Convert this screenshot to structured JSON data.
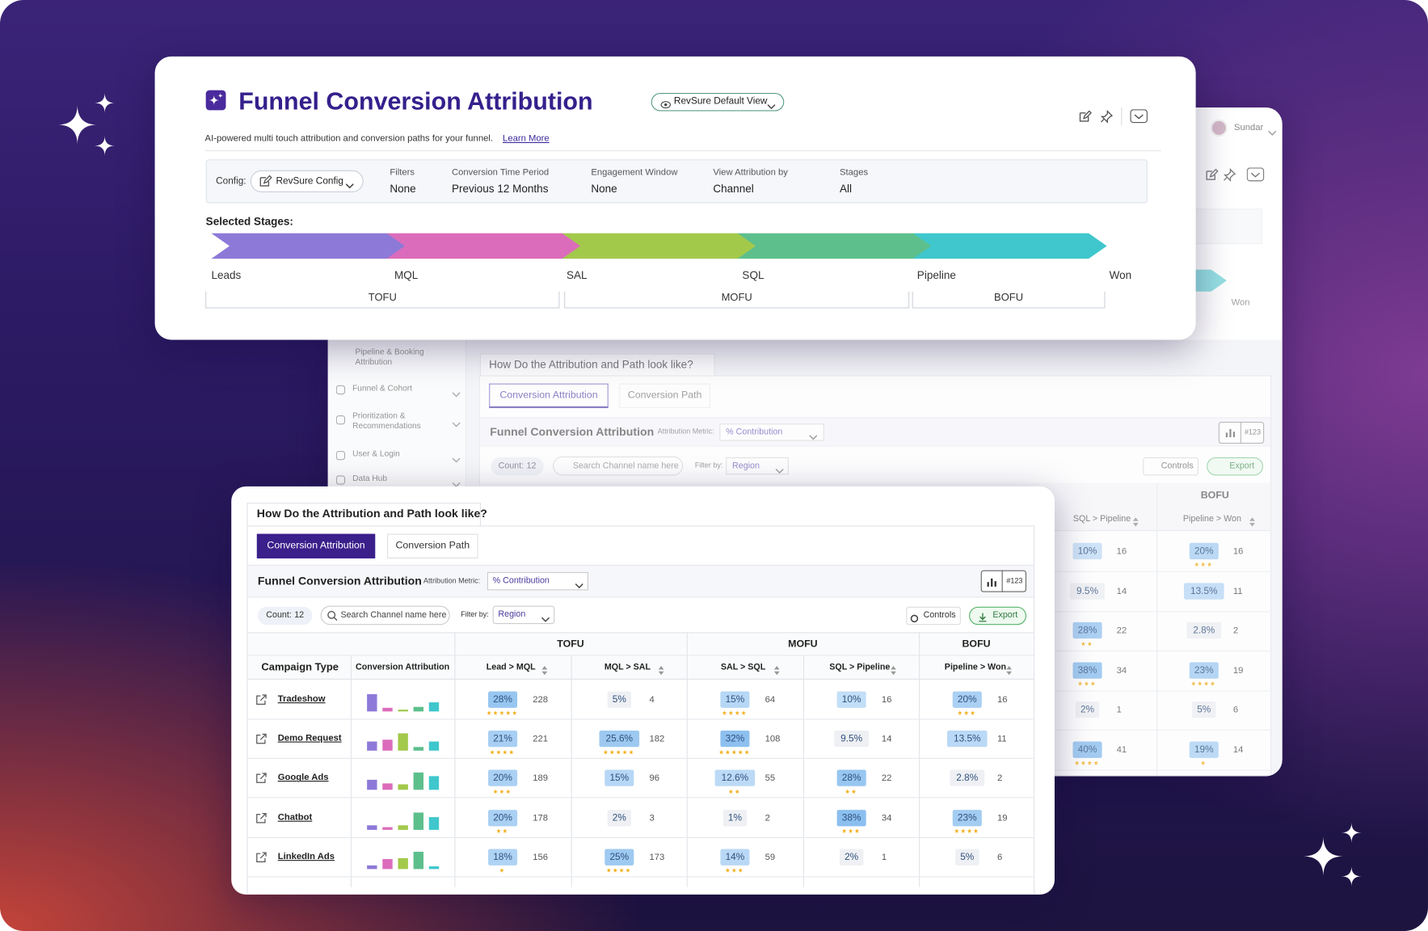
{
  "header": {
    "title": "Funnel Conversion Attribution",
    "view": "RevSure Default View",
    "subtitle": "AI-powered multi touch attribution and conversion paths for your funnel.",
    "learn_more": "Learn More",
    "user": "Sundar"
  },
  "config": {
    "label": "Config:",
    "value": "RevSure Config",
    "fields": [
      {
        "label": "Filters",
        "value": "None"
      },
      {
        "label": "Conversion Time Period",
        "value": "Previous 12 Months"
      },
      {
        "label": "Engagement Window",
        "value": "None"
      },
      {
        "label": "View Attribution by",
        "value": "Channel"
      },
      {
        "label": "Stages",
        "value": "All"
      }
    ]
  },
  "stages": {
    "label": "Selected Stages:",
    "names": [
      "Leads",
      "MQL",
      "SAL",
      "SQL",
      "Pipeline",
      "Won"
    ],
    "colors": [
      "#8d79d8",
      "#db6cbb",
      "#a3c94b",
      "#5dbf8c",
      "#3fc7cd"
    ],
    "groups": [
      "TOFU",
      "MOFU",
      "BOFU"
    ]
  },
  "sidebar": {
    "items": [
      "Pipeline & Booking Attribution",
      "Funnel & Cohort",
      "Prioritization & Recommendations",
      "User & Login",
      "Data Hub"
    ]
  },
  "panel": {
    "question": "How Do the Attribution and Path look like?",
    "tabs": [
      "Conversion Attribution",
      "Conversion Path"
    ],
    "title": "Funnel Conversion Attribution",
    "metric_label": "Attribution Metric:",
    "metric": "% Contribution",
    "chart_badge": "#123",
    "count_label": "Count:",
    "count": 12,
    "search_placeholder": "Search Channel name here",
    "filter_label": "Filter by:",
    "filter": "Region",
    "controls": "Controls",
    "export": "Export"
  },
  "table": {
    "groups": [
      "TOFU",
      "MOFU",
      "BOFU"
    ],
    "columns": [
      "Campaign Type",
      "Conversion Attribution",
      "Lead > MQL",
      "MQL > SAL",
      "SAL > SQL",
      "SQL > Pipeline",
      "Pipeline > Won"
    ],
    "rows": [
      {
        "name": "Tradeshow",
        "bars": [
          19,
          4,
          2,
          5,
          10
        ],
        "cells": [
          {
            "pct": "28%",
            "count": 228,
            "stars": 5
          },
          {
            "pct": "5%",
            "count": 4,
            "stars": 0
          },
          {
            "pct": "15%",
            "count": 64,
            "stars": 4
          },
          {
            "pct": "10%",
            "count": 16,
            "stars": 0
          },
          {
            "pct": "20%",
            "count": 16,
            "stars": 3
          }
        ]
      },
      {
        "name": "Demo Request",
        "bars": [
          10,
          12,
          19,
          4,
          10
        ],
        "cells": [
          {
            "pct": "21%",
            "count": 221,
            "stars": 4
          },
          {
            "pct": "25.6%",
            "count": 182,
            "stars": 5
          },
          {
            "pct": "32%",
            "count": 108,
            "stars": 5
          },
          {
            "pct": "9.5%",
            "count": 14,
            "stars": 0
          },
          {
            "pct": "13.5%",
            "count": 11,
            "stars": 0
          }
        ]
      },
      {
        "name": "Google Ads",
        "bars": [
          11,
          7,
          6,
          19,
          15
        ],
        "cells": [
          {
            "pct": "20%",
            "count": 189,
            "stars": 3
          },
          {
            "pct": "15%",
            "count": 96,
            "stars": 0
          },
          {
            "pct": "12.6%",
            "count": 55,
            "stars": 2
          },
          {
            "pct": "28%",
            "count": 22,
            "stars": 2
          },
          {
            "pct": "2.8%",
            "count": 2,
            "stars": 0
          }
        ]
      },
      {
        "name": "Chatbot",
        "bars": [
          5,
          3,
          5,
          19,
          14
        ],
        "cells": [
          {
            "pct": "20%",
            "count": 178,
            "stars": 2
          },
          {
            "pct": "2%",
            "count": 3,
            "stars": 0
          },
          {
            "pct": "1%",
            "count": 2,
            "stars": 0
          },
          {
            "pct": "38%",
            "count": 34,
            "stars": 3
          },
          {
            "pct": "23%",
            "count": 19,
            "stars": 4
          }
        ]
      },
      {
        "name": "LinkedIn Ads",
        "bars": [
          4,
          11,
          12,
          19,
          3
        ],
        "cells": [
          {
            "pct": "18%",
            "count": 156,
            "stars": 1
          },
          {
            "pct": "25%",
            "count": 173,
            "stars": 4
          },
          {
            "pct": "14%",
            "count": 59,
            "stars": 3
          },
          {
            "pct": "2%",
            "count": 1,
            "stars": 0
          },
          {
            "pct": "5%",
            "count": 6,
            "stars": 0
          }
        ]
      }
    ]
  },
  "back_table": {
    "rows": [
      [
        {
          "pct": "10%",
          "count": 16,
          "stars": 0
        },
        {
          "pct": "20%",
          "count": 16,
          "stars": 3
        }
      ],
      [
        {
          "pct": "9.5%",
          "count": 14,
          "stars": 0
        },
        {
          "pct": "13.5%",
          "count": 11,
          "stars": 0
        }
      ],
      [
        {
          "pct": "28%",
          "count": 22,
          "stars": 2
        },
        {
          "pct": "2.8%",
          "count": 2,
          "stars": 0
        }
      ],
      [
        {
          "pct": "38%",
          "count": 34,
          "stars": 3
        },
        {
          "pct": "23%",
          "count": 19,
          "stars": 4
        }
      ],
      [
        {
          "pct": "2%",
          "count": 1,
          "stars": 0
        },
        {
          "pct": "5%",
          "count": 6,
          "stars": 0
        }
      ],
      [
        {
          "pct": "40%",
          "count": 41,
          "stars": 4
        },
        {
          "pct": "19%",
          "count": 14,
          "stars": 1
        }
      ]
    ]
  }
}
